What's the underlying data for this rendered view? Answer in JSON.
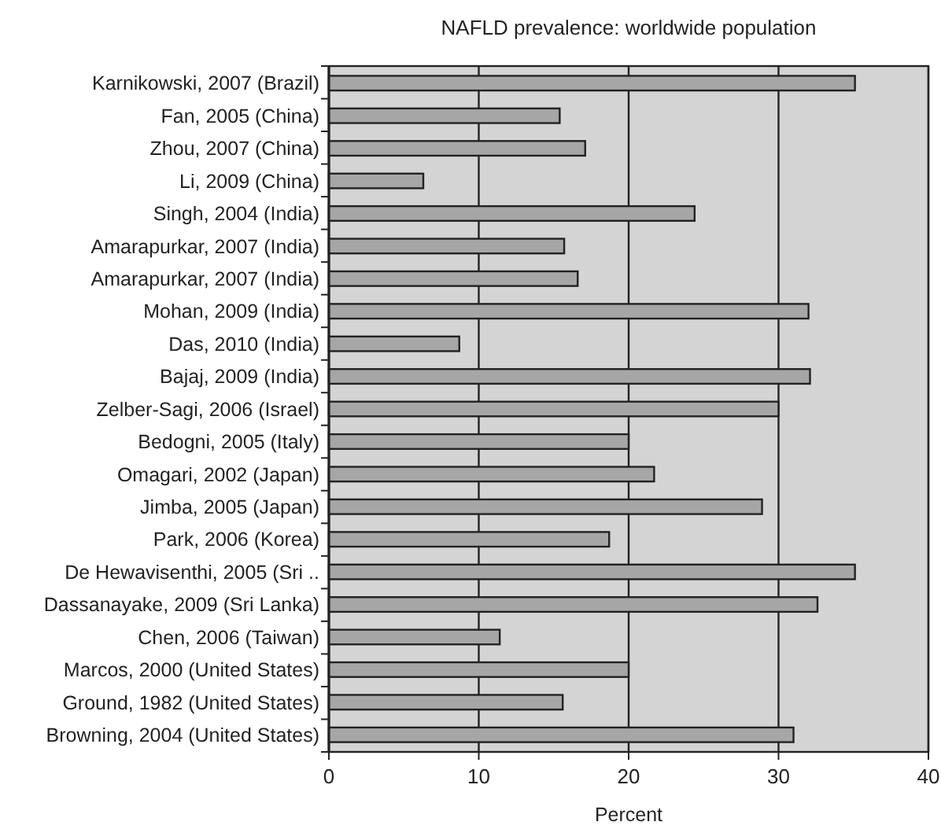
{
  "chart_data": {
    "type": "bar",
    "orientation": "horizontal",
    "title": "NAFLD prevalence: worldwide population",
    "xlabel": "Percent",
    "categories": [
      "Karnikowski, 2007 (Brazil)",
      "Fan, 2005 (China)",
      "Zhou, 2007 (China)",
      "Li, 2009 (China)",
      "Singh, 2004 (India)",
      "Amarapurkar, 2007 (India)",
      "Amarapurkar, 2007 (India)",
      "Mohan, 2009 (India)",
      "Das, 2010 (India)",
      "Bajaj, 2009 (India)",
      "Zelber-Sagi, 2006 (Israel)",
      "Bedogni, 2005 (Italy)",
      "Omagari, 2002 (Japan)",
      "Jimba, 2005 (Japan)",
      "Park, 2006 (Korea)",
      "De Hewavisenthi, 2005 (Sri ..",
      "Dassanayake, 2009 (Sri Lanka)",
      "Chen, 2006 (Taiwan)",
      "Marcos, 2000 (United States)",
      "Ground, 1982 (United States)",
      "Browning, 2004 (United States)"
    ],
    "values": [
      35.1,
      15.4,
      17.1,
      6.3,
      24.4,
      15.7,
      16.6,
      32.0,
      8.7,
      32.1,
      30.0,
      20.0,
      21.7,
      28.9,
      18.7,
      35.1,
      32.6,
      11.4,
      20.0,
      15.6,
      31.0
    ],
    "color": "#a6a6a6",
    "xlim": [
      0,
      40
    ],
    "xticks": [
      0,
      10,
      20,
      30,
      40
    ],
    "grid": "x"
  }
}
